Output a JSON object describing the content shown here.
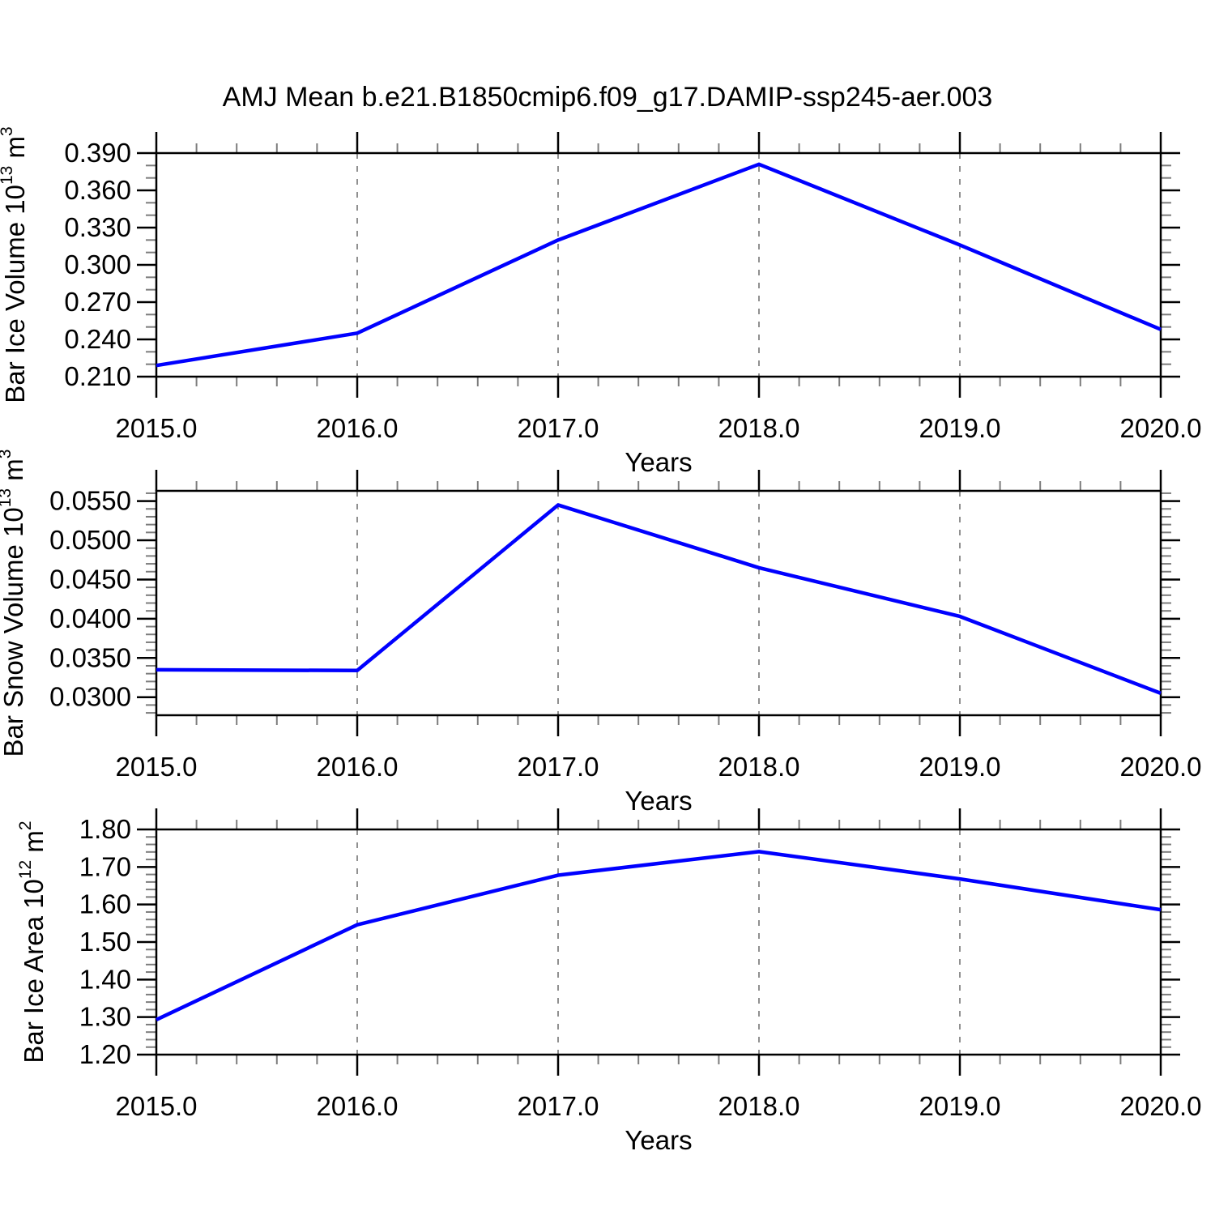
{
  "title": "AMJ Mean b.e21.B1850cmip6.f09_g17.DAMIP-ssp245-aer.003",
  "colors": {
    "line": "#0000ff",
    "axis": "#000000",
    "minor_tick": "#7c7c7c",
    "grid": "#909090",
    "text": "#000000"
  },
  "chart_data": [
    {
      "type": "line",
      "name": "ice-volume",
      "title": "",
      "xlabel": "Years",
      "ylabel": "Bar Ice Volume 10^{13} m^{3}",
      "x": [
        2015,
        2016,
        2017,
        2018,
        2019,
        2020
      ],
      "values": [
        0.219,
        0.245,
        0.32,
        0.381,
        0.316,
        0.248
      ],
      "xlim": [
        2015,
        2020
      ],
      "ylim": [
        0.21,
        0.39
      ],
      "x_ticks": [
        2015,
        2016,
        2017,
        2018,
        2019,
        2020
      ],
      "x_tick_labels": [
        "2015.0",
        "2016.0",
        "2017.0",
        "2018.0",
        "2019.0",
        "2020.0"
      ],
      "x_minor_step": 0.2,
      "y_ticks": [
        0.21,
        0.24,
        0.27,
        0.3,
        0.33,
        0.36,
        0.39
      ],
      "y_tick_labels": [
        "0.210",
        "0.240",
        "0.270",
        "0.300",
        "0.330",
        "0.360",
        "0.390"
      ],
      "y_minor_step": 0.01,
      "grid_x": [
        2016,
        2017,
        2018,
        2019
      ],
      "grid": "vertical-dashed",
      "legend": "none"
    },
    {
      "type": "line",
      "name": "snow-volume",
      "title": "",
      "xlabel": "Years",
      "ylabel": "Bar Snow Volume 10^{13} m^{3}",
      "x": [
        2015,
        2016,
        2017,
        2018,
        2019,
        2020
      ],
      "values": [
        0.0335,
        0.0334,
        0.0545,
        0.0465,
        0.0403,
        0.0305
      ],
      "xlim": [
        2015,
        2020
      ],
      "ylim": [
        0.0277,
        0.0563
      ],
      "x_ticks": [
        2015,
        2016,
        2017,
        2018,
        2019,
        2020
      ],
      "x_tick_labels": [
        "2015.0",
        "2016.0",
        "2017.0",
        "2018.0",
        "2019.0",
        "2020.0"
      ],
      "x_minor_step": 0.2,
      "y_ticks": [
        0.03,
        0.035,
        0.04,
        0.045,
        0.05,
        0.055
      ],
      "y_tick_labels": [
        "0.0300",
        "0.0350",
        "0.0400",
        "0.0450",
        "0.0500",
        "0.0550"
      ],
      "y_minor_step": 0.001,
      "grid_x": [
        2016,
        2017,
        2018,
        2019
      ],
      "grid": "vertical-dashed",
      "legend": "none"
    },
    {
      "type": "line",
      "name": "ice-area",
      "title": "",
      "xlabel": "Years",
      "ylabel": "Bar Ice Area 10^{12} m^{2}",
      "x": [
        2015,
        2016,
        2017,
        2018,
        2019,
        2020
      ],
      "values": [
        1.293,
        1.546,
        1.678,
        1.741,
        1.668,
        1.586
      ],
      "xlim": [
        2015,
        2020
      ],
      "ylim": [
        1.2,
        1.8
      ],
      "x_ticks": [
        2015,
        2016,
        2017,
        2018,
        2019,
        2020
      ],
      "x_tick_labels": [
        "2015.0",
        "2016.0",
        "2017.0",
        "2018.0",
        "2019.0",
        "2020.0"
      ],
      "x_minor_step": 0.2,
      "y_ticks": [
        1.2,
        1.3,
        1.4,
        1.5,
        1.6,
        1.7,
        1.8
      ],
      "y_tick_labels": [
        "1.20",
        "1.30",
        "1.40",
        "1.50",
        "1.60",
        "1.70",
        "1.80"
      ],
      "y_minor_step": 0.02,
      "grid_x": [
        2016,
        2017,
        2018,
        2019
      ],
      "grid": "vertical-dashed",
      "legend": "none"
    }
  ]
}
